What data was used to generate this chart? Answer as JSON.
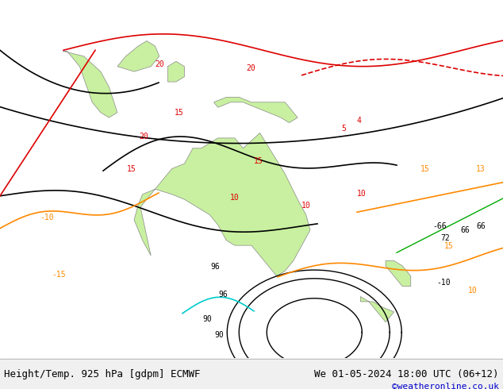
{
  "title_left": "Height/Temp. 925 hPa [gdpm] ECMWF",
  "title_right": "We 01-05-2024 18:00 UTC (06+12)",
  "copyright": "©weatheronline.co.uk",
  "bg_color": "#f0f0f0",
  "land_color": "#c8f0a0",
  "sea_color": "#ffffff",
  "contour_color_black": "#000000",
  "contour_color_red": "#dd0000",
  "contour_color_orange": "#ff8800",
  "contour_color_green": "#00aa00",
  "contour_color_cyan": "#00cccc",
  "fig_width": 6.34,
  "fig_height": 4.9,
  "dpi": 100,
  "bottom_bar_color": "#e8e8e8",
  "bottom_text_color": "#000000",
  "copyright_color": "#0000cc",
  "font_size_bottom": 9,
  "font_size_title": 9
}
